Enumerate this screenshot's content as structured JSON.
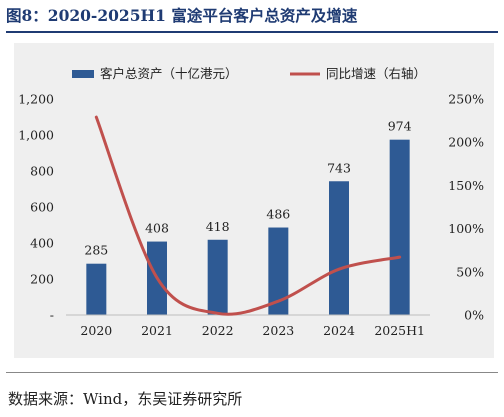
{
  "figure": {
    "title": "图8：2020-2025H1 富途平台客户总资产及增速",
    "source": "数据来源：Wind，东吴证券研究所"
  },
  "colors": {
    "bar": "#2e5a94",
    "line": "#c0504d",
    "title": "#1f3b73",
    "plot_bg": "#efefef"
  },
  "chart_data": {
    "type": "bar",
    "categories": [
      "2020",
      "2021",
      "2022",
      "2023",
      "2024",
      "2025H1"
    ],
    "series": [
      {
        "name": "客户总资产（十亿港元）",
        "type": "bar",
        "axis": "left",
        "values": [
          285,
          408,
          418,
          486,
          743,
          974
        ]
      },
      {
        "name": "同比增速（右轴）",
        "type": "line",
        "axis": "right",
        "smooth": true,
        "values": [
          2.29,
          0.43,
          0.02,
          0.16,
          0.53,
          0.67
        ]
      }
    ],
    "y_left": {
      "min": 0,
      "max": 1200,
      "ticks": [
        "-",
        "200",
        "400",
        "600",
        "800",
        "1,000",
        "1,200"
      ]
    },
    "y_right": {
      "min": 0,
      "max": 2.5,
      "ticks": [
        "0%",
        "50%",
        "100%",
        "150%",
        "200%",
        "250%"
      ]
    },
    "data_labels": [
      "285",
      "408",
      "418",
      "486",
      "743",
      "974"
    ],
    "legend": "top",
    "grid": false
  }
}
